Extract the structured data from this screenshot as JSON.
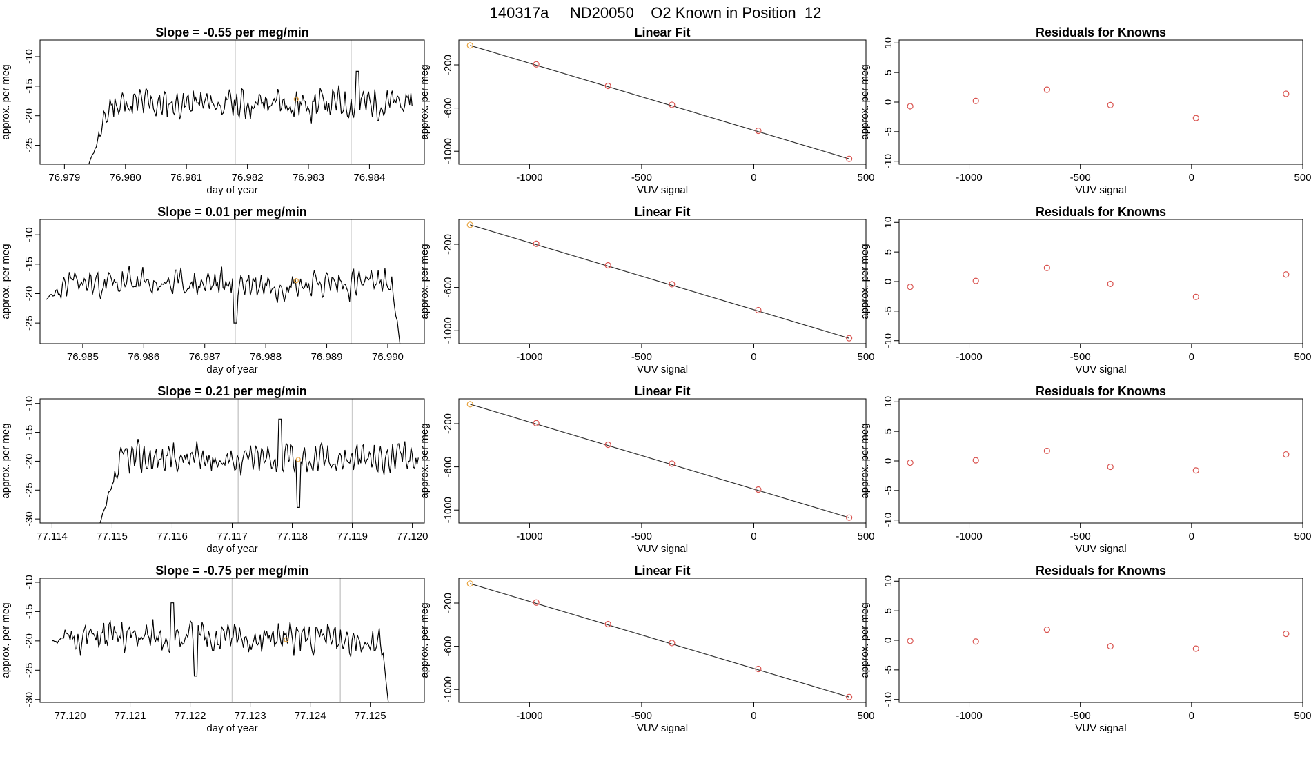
{
  "header": {
    "title": "140317a     ND20050    O2 Known in Position  12"
  },
  "colors": {
    "trace": "#000000",
    "guide": "#cccccc",
    "residual": "#d9534f",
    "highlight": "#e8a33d",
    "fit": "#333333"
  },
  "chart_data": [
    {
      "type": "line",
      "title": "Slope =  -0.55  per meg/min",
      "xlabel": "day of year",
      "ylabel": "approx. per meg",
      "xlim": [
        76.9786,
        76.9849
      ],
      "ylim": [
        -28.2,
        -7.2
      ],
      "xticks": [
        "76.979",
        "76.980",
        "76.981",
        "76.982",
        "76.983",
        "76.984"
      ],
      "yticks": [
        "-25",
        "-20",
        "-15",
        "-10"
      ],
      "guides": [
        76.9818,
        76.9837
      ],
      "highlight": [
        76.9828,
        -17.2
      ],
      "series": {
        "x_start": 76.9794,
        "x_end": 76.9847,
        "y_start": -28.2,
        "base": -18,
        "amp": 3.4,
        "seed": 11,
        "ramp": 0.1,
        "dips": [
          [
            76.9838,
            -12.5
          ]
        ]
      }
    },
    {
      "type": "line",
      "title": "Linear Fit",
      "xlabel": "VUV signal",
      "ylabel": "approx. per meg",
      "xlim": [
        -1315,
        500
      ],
      "ylim": [
        -1120,
        30
      ],
      "xticks": [
        "-1000",
        "-500",
        "0",
        "500"
      ],
      "yticks": [
        "-1000",
        "-600",
        "-200"
      ],
      "points": [
        [
          -1265,
          -20
        ],
        [
          -970,
          -195
        ],
        [
          -650,
          -395
        ],
        [
          -365,
          -570
        ],
        [
          20,
          -810
        ],
        [
          425,
          -1070
        ]
      ]
    },
    {
      "type": "scatter",
      "title": "Residuals for Knowns",
      "xlabel": "VUV signal",
      "ylabel": "approx. per meg",
      "xlim": [
        -1315,
        500
      ],
      "ylim": [
        -10.5,
        10.5
      ],
      "xticks": [
        "-1000",
        "-500",
        "0",
        "500"
      ],
      "yticks": [
        "-10",
        "-5",
        "0",
        "5",
        "10"
      ],
      "points": [
        [
          -1265,
          -0.7
        ],
        [
          -970,
          0.2
        ],
        [
          -650,
          2.1
        ],
        [
          -365,
          -0.5
        ],
        [
          20,
          -2.7
        ],
        [
          425,
          1.4
        ]
      ]
    },
    {
      "type": "line",
      "title": "Slope =  0.01  per meg/min",
      "xlabel": "day of year",
      "ylabel": "approx. per meg",
      "xlim": [
        76.9843,
        76.9906
      ],
      "ylim": [
        -28.5,
        -7.4
      ],
      "xticks": [
        "76.985",
        "76.986",
        "76.987",
        "76.988",
        "76.989",
        "76.990"
      ],
      "yticks": [
        "-25",
        "-20",
        "-15",
        "-10"
      ],
      "guides": [
        76.9875,
        76.9894
      ],
      "highlight": [
        76.9885,
        -17.8
      ],
      "series": {
        "x_start": 76.9844,
        "x_end": 76.9902,
        "y_start": -21,
        "y_end": -28.5,
        "base": -18.3,
        "amp": 3.2,
        "seed": 23,
        "ramp": 0,
        "dips": [
          [
            76.9875,
            -25
          ]
        ]
      }
    },
    {
      "type": "line",
      "title": "Linear Fit",
      "xlabel": "VUV signal",
      "ylabel": "approx. per meg",
      "xlim": [
        -1315,
        500
      ],
      "ylim": [
        -1120,
        30
      ],
      "xticks": [
        "-1000",
        "-500",
        "0",
        "500"
      ],
      "yticks": [
        "-1000",
        "-600",
        "-200"
      ],
      "points": [
        [
          -1265,
          -20
        ],
        [
          -970,
          -195
        ],
        [
          -650,
          -395
        ],
        [
          -365,
          -570
        ],
        [
          20,
          -810
        ],
        [
          425,
          -1070
        ]
      ]
    },
    {
      "type": "scatter",
      "title": "Residuals for Knowns",
      "xlabel": "VUV signal",
      "ylabel": "approx. per meg",
      "xlim": [
        -1315,
        500
      ],
      "ylim": [
        -10.5,
        10.5
      ],
      "xticks": [
        "-1000",
        "-500",
        "0",
        "500"
      ],
      "yticks": [
        "-10",
        "-5",
        "0",
        "5",
        "10"
      ],
      "points": [
        [
          -1265,
          -0.9
        ],
        [
          -970,
          0.1
        ],
        [
          -650,
          2.3
        ],
        [
          -365,
          -0.4
        ],
        [
          20,
          -2.6
        ],
        [
          425,
          1.2
        ]
      ]
    },
    {
      "type": "line",
      "title": "Slope =  0.21  per meg/min",
      "xlabel": "day of year",
      "ylabel": "approx. per meg",
      "xlim": [
        77.1138,
        77.1202
      ],
      "ylim": [
        -30.7,
        -9.2
      ],
      "xticks": [
        "77.114",
        "77.115",
        "77.116",
        "77.117",
        "77.118",
        "77.119",
        "77.120"
      ],
      "yticks": [
        "-30",
        "-25",
        "-20",
        "-15",
        "-10"
      ],
      "guides": [
        77.1171,
        77.119
      ],
      "highlight": [
        77.1181,
        -19.7
      ],
      "series": {
        "x_start": 77.1148,
        "x_end": 77.1201,
        "y_start": -30.7,
        "base": -19.5,
        "amp": 3.3,
        "seed": 37,
        "ramp": 0.1,
        "dips": [
          [
            77.1181,
            -28
          ],
          [
            77.1178,
            -12.7
          ]
        ]
      }
    },
    {
      "type": "line",
      "title": "Linear Fit",
      "xlabel": "VUV signal",
      "ylabel": "approx. per meg",
      "xlim": [
        -1315,
        500
      ],
      "ylim": [
        -1120,
        30
      ],
      "xticks": [
        "-1000",
        "-500",
        "0",
        "500"
      ],
      "yticks": [
        "-1000",
        "-600",
        "-200"
      ],
      "points": [
        [
          -1265,
          -20
        ],
        [
          -970,
          -195
        ],
        [
          -650,
          -395
        ],
        [
          -365,
          -570
        ],
        [
          20,
          -810
        ],
        [
          425,
          -1070
        ]
      ]
    },
    {
      "type": "scatter",
      "title": "Residuals for Knowns",
      "xlabel": "VUV signal",
      "ylabel": "approx. per meg",
      "xlim": [
        -1315,
        500
      ],
      "ylim": [
        -10.5,
        10.5
      ],
      "xticks": [
        "-1000",
        "-500",
        "0",
        "500"
      ],
      "yticks": [
        "-10",
        "-5",
        "0",
        "5",
        "10"
      ],
      "points": [
        [
          -1265,
          -0.3
        ],
        [
          -970,
          0.1
        ],
        [
          -650,
          1.7
        ],
        [
          -365,
          -1.0
        ],
        [
          20,
          -1.6
        ],
        [
          425,
          1.1
        ]
      ]
    },
    {
      "type": "line",
      "title": "Slope =  -0.75  per meg/min",
      "xlabel": "day of year",
      "ylabel": "approx. per meg",
      "xlim": [
        77.1195,
        77.1259
      ],
      "ylim": [
        -30.5,
        -9.3
      ],
      "xticks": [
        "77.120",
        "77.121",
        "77.122",
        "77.123",
        "77.124",
        "77.125"
      ],
      "yticks": [
        "-30",
        "-25",
        "-20",
        "-15",
        "-10"
      ],
      "guides": [
        77.1227,
        77.1245
      ],
      "highlight": [
        77.1236,
        -19.8
      ],
      "series": {
        "x_start": 77.1197,
        "x_end": 77.1253,
        "y_start": -20,
        "y_end": -30.5,
        "base": -19.5,
        "amp": 3.4,
        "seed": 51,
        "ramp": 0,
        "dips": [
          [
            77.1221,
            -26
          ],
          [
            77.1217,
            -13.5
          ]
        ]
      }
    },
    {
      "type": "line",
      "title": "Linear Fit",
      "xlabel": "VUV signal",
      "ylabel": "approx. per meg",
      "xlim": [
        -1315,
        500
      ],
      "ylim": [
        -1120,
        30
      ],
      "xticks": [
        "-1000",
        "-500",
        "0",
        "500"
      ],
      "yticks": [
        "-1000",
        "-600",
        "-200"
      ],
      "points": [
        [
          -1265,
          -20
        ],
        [
          -970,
          -195
        ],
        [
          -650,
          -395
        ],
        [
          -365,
          -570
        ],
        [
          20,
          -810
        ],
        [
          425,
          -1070
        ]
      ]
    },
    {
      "type": "scatter",
      "title": "Residuals for Knowns",
      "xlabel": "VUV signal",
      "ylabel": "approx. per meg",
      "xlim": [
        -1315,
        500
      ],
      "ylim": [
        -10.5,
        10.5
      ],
      "xticks": [
        "-1000",
        "-500",
        "0",
        "500"
      ],
      "yticks": [
        "-10",
        "-5",
        "0",
        "5",
        "10"
      ],
      "points": [
        [
          -1265,
          -0.1
        ],
        [
          -970,
          -0.2
        ],
        [
          -650,
          1.8
        ],
        [
          -365,
          -1.0
        ],
        [
          20,
          -1.4
        ],
        [
          425,
          1.1
        ]
      ]
    }
  ]
}
